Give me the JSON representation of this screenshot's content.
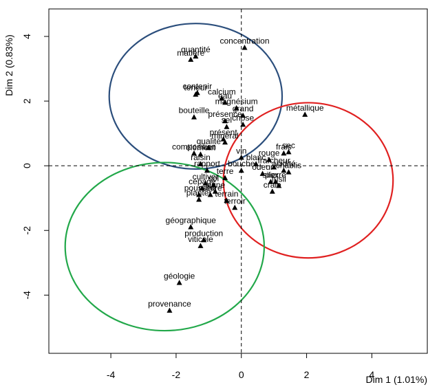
{
  "chart_data": {
    "type": "scatter",
    "xlabel": "Dim 1 (1.01%)",
    "ylabel": "Dim 2 (0.83%)",
    "xlim": [
      -5.9,
      5.7
    ],
    "ylim": [
      -5.8,
      4.85
    ],
    "xticks": [
      -4,
      -2,
      0,
      2,
      4
    ],
    "yticks": [
      -4,
      -2,
      0,
      2,
      4
    ],
    "grid": false,
    "reference_lines": {
      "x": 0,
      "y": 0,
      "style": "dashed"
    },
    "points": [
      {
        "label": "concentration",
        "x": 0.1,
        "y": 3.65
      },
      {
        "label": "quantité",
        "x": -1.4,
        "y": 3.38
      },
      {
        "label": "matière",
        "x": -1.55,
        "y": 3.28
      },
      {
        "label": "contenir",
        "x": -1.35,
        "y": 2.25
      },
      {
        "label": "calcium",
        "x": -0.6,
        "y": 2.08
      },
      {
        "label": "teneur",
        "x": -1.4,
        "y": 2.2
      },
      {
        "label": "eau",
        "x": -0.5,
        "y": 1.95
      },
      {
        "label": "magnésium",
        "x": -0.15,
        "y": 1.78
      },
      {
        "label": "bouteille",
        "x": -1.45,
        "y": 1.5
      },
      {
        "label": "grand",
        "x": 0.05,
        "y": 1.55
      },
      {
        "label": "présence",
        "x": -0.5,
        "y": 1.38
      },
      {
        "label": "chose",
        "x": 0.05,
        "y": 1.27
      },
      {
        "label": "sel",
        "x": -0.45,
        "y": 1.2
      },
      {
        "label": "présent",
        "x": -0.55,
        "y": 0.82
      },
      {
        "label": "minéral",
        "x": -0.5,
        "y": 0.72
      },
      {
        "label": "métallique",
        "x": 1.95,
        "y": 1.58
      },
      {
        "label": "composition",
        "x": -1.45,
        "y": 0.38
      },
      {
        "label": "qualité",
        "x": -1.0,
        "y": 0.55
      },
      {
        "label": "frais",
        "x": 1.3,
        "y": 0.38
      },
      {
        "label": "sec",
        "x": 1.45,
        "y": 0.42
      },
      {
        "label": "vin",
        "x": 0.0,
        "y": 0.25
      },
      {
        "label": "élément",
        "x": -1.25,
        "y": 0.35
      },
      {
        "label": "rouge",
        "x": 0.85,
        "y": 0.18
      },
      {
        "label": "blanc",
        "x": 0.45,
        "y": 0.05
      },
      {
        "label": "raisin",
        "x": -1.25,
        "y": 0.05
      },
      {
        "label": "fraîcheur",
        "x": 1.0,
        "y": -0.05
      },
      {
        "label": "rapport",
        "x": -1.05,
        "y": -0.15
      },
      {
        "label": "bouche",
        "x": 0.0,
        "y": -0.15
      },
      {
        "label": "acidité",
        "x": 1.3,
        "y": -0.15
      },
      {
        "label": "terre",
        "x": -0.5,
        "y": -0.38
      },
      {
        "label": "odeur",
        "x": 0.65,
        "y": -0.25
      },
      {
        "label": "chablis",
        "x": 1.45,
        "y": -0.2
      },
      {
        "label": "cultiver",
        "x": -1.1,
        "y": -0.55
      },
      {
        "label": "sol",
        "x": -0.85,
        "y": -0.6
      },
      {
        "label": "pierre",
        "x": 1.05,
        "y": -0.5
      },
      {
        "label": "silex",
        "x": 0.9,
        "y": -0.5
      },
      {
        "label": "cépage",
        "x": -1.2,
        "y": -0.7
      },
      {
        "label": "vigne",
        "x": -0.8,
        "y": -0.8
      },
      {
        "label": "fusil",
        "x": 1.15,
        "y": -0.62
      },
      {
        "label": "craie",
        "x": 0.95,
        "y": -0.8
      },
      {
        "label": "pousser",
        "x": -1.3,
        "y": -0.9
      },
      {
        "label": "nature",
        "x": -0.95,
        "y": -0.9
      },
      {
        "label": "planter",
        "x": -1.3,
        "y": -1.05
      },
      {
        "label": "terrain",
        "x": -0.45,
        "y": -1.08
      },
      {
        "label": "terroir",
        "x": -0.2,
        "y": -1.3
      },
      {
        "label": "géographique",
        "x": -1.55,
        "y": -1.9
      },
      {
        "label": "production",
        "x": -1.15,
        "y": -2.3
      },
      {
        "label": "viticole",
        "x": -1.25,
        "y": -2.48
      },
      {
        "label": "géologie",
        "x": -1.9,
        "y": -3.62
      },
      {
        "label": "provenance",
        "x": -2.2,
        "y": -4.48
      }
    ],
    "ellipses": [
      {
        "group": "blue",
        "color": "#2b4e7c",
        "cx": -1.4,
        "cy": 2.15,
        "rx": 2.65,
        "ry": 2.25
      },
      {
        "group": "red",
        "color": "#e02020",
        "cx": 2.05,
        "cy": -0.45,
        "rx": 2.6,
        "ry": 2.4
      },
      {
        "group": "green",
        "color": "#22a84a",
        "cx": -2.35,
        "cy": -2.5,
        "rx": 3.05,
        "ry": 2.6
      }
    ]
  }
}
